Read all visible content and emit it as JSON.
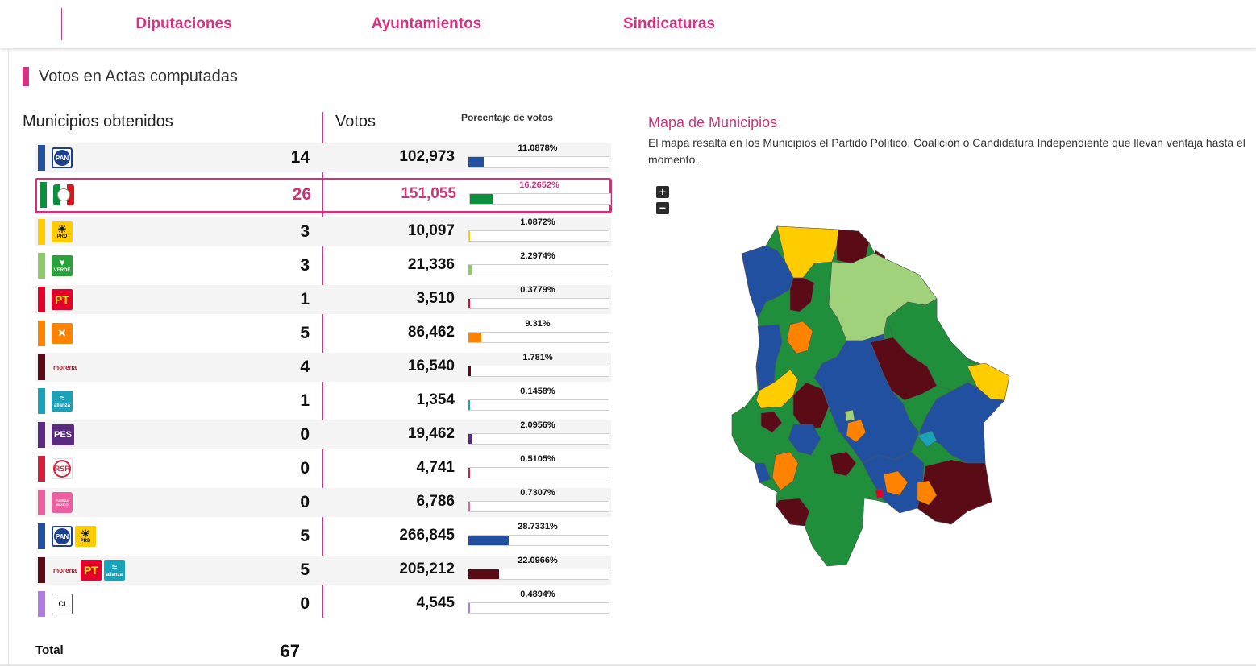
{
  "tabs": [
    {
      "label": "Diputaciones",
      "active": false
    },
    {
      "label": "Ayuntamientos",
      "active": true
    },
    {
      "label": "Sindicaturas",
      "active": false
    }
  ],
  "section_title": "Votos en Actas computadas",
  "headers": {
    "municipios": "Municipios obtenidos",
    "votos": "Votos",
    "porcentaje": "Porcentaje de votos"
  },
  "rows": [
    {
      "logos": [
        "PAN"
      ],
      "color": "#2150a0",
      "municipios": "14",
      "votos": "102,973",
      "porcentaje": "11.0878%",
      "pct_value": 11.0878,
      "highlighted": false
    },
    {
      "logos": [
        "PRI"
      ],
      "color": "#0a8f3c",
      "municipios": "26",
      "votos": "151,055",
      "porcentaje": "16.2652%",
      "pct_value": 16.2652,
      "highlighted": true
    },
    {
      "logos": [
        "PRD"
      ],
      "color": "#ffcc00",
      "municipios": "3",
      "votos": "10,097",
      "porcentaje": "1.0872%",
      "pct_value": 1.0872,
      "highlighted": false
    },
    {
      "logos": [
        "VERDE"
      ],
      "color": "#8fc96a",
      "municipios": "3",
      "votos": "21,336",
      "porcentaje": "2.2974%",
      "pct_value": 2.2974,
      "highlighted": false
    },
    {
      "logos": [
        "PT"
      ],
      "color": "#e4002b",
      "municipios": "1",
      "votos": "3,510",
      "porcentaje": "0.3779%",
      "pct_value": 0.3779,
      "highlighted": false
    },
    {
      "logos": [
        "MC"
      ],
      "color": "#ff8300",
      "municipios": "5",
      "votos": "86,462",
      "porcentaje": "9.31%",
      "pct_value": 9.31,
      "highlighted": false
    },
    {
      "logos": [
        "morena"
      ],
      "color": "#5b0b16",
      "municipios": "4",
      "votos": "16,540",
      "porcentaje": "1.781%",
      "pct_value": 1.781,
      "highlighted": false
    },
    {
      "logos": [
        "alianza"
      ],
      "color": "#1aa3b8",
      "municipios": "1",
      "votos": "1,354",
      "porcentaje": "0.1458%",
      "pct_value": 0.1458,
      "highlighted": false
    },
    {
      "logos": [
        "PES"
      ],
      "color": "#5b2a82",
      "municipios": "0",
      "votos": "19,462",
      "porcentaje": "2.0956%",
      "pct_value": 2.0956,
      "highlighted": false
    },
    {
      "logos": [
        "RSP"
      ],
      "color": "#d5203c",
      "municipios": "0",
      "votos": "4,741",
      "porcentaje": "0.5105%",
      "pct_value": 0.5105,
      "highlighted": false
    },
    {
      "logos": [
        "FXM"
      ],
      "color": "#ec5ea0",
      "municipios": "0",
      "votos": "6,786",
      "porcentaje": "0.7307%",
      "pct_value": 0.7307,
      "highlighted": false
    },
    {
      "logos": [
        "PAN",
        "PRD"
      ],
      "color": "#2150a0",
      "municipios": "5",
      "votos": "266,845",
      "porcentaje": "28.7331%",
      "pct_value": 28.7331,
      "highlighted": false
    },
    {
      "logos": [
        "morena",
        "PT",
        "alianza"
      ],
      "color": "#5b0b16",
      "municipios": "5",
      "votos": "205,212",
      "porcentaje": "22.0966%",
      "pct_value": 22.0966,
      "highlighted": false
    },
    {
      "logos": [
        "CI"
      ],
      "color": "#b07ce0",
      "municipios": "0",
      "votos": "4,545",
      "porcentaje": "0.4894%",
      "pct_value": 0.4894,
      "highlighted": false
    }
  ],
  "logo_text": {
    "PAN": "PAN",
    "PRD": "PRD",
    "VERDE": "VERDE",
    "PT": "PT",
    "morena": "morena",
    "alianza": "alianza",
    "PES": "PES",
    "RSP": "RSP",
    "FXM": "FUERZA MÉXICO",
    "CI": "CI"
  },
  "total": {
    "label": "Total",
    "value": "67"
  },
  "map": {
    "title": "Mapa de Municipios",
    "description": "El mapa resalta en los Municipios el Partido Político, Coalición o Candidatura Independiente que llevan ventaja hasta el momento.",
    "zoom_in": "+",
    "zoom_out": "−"
  }
}
